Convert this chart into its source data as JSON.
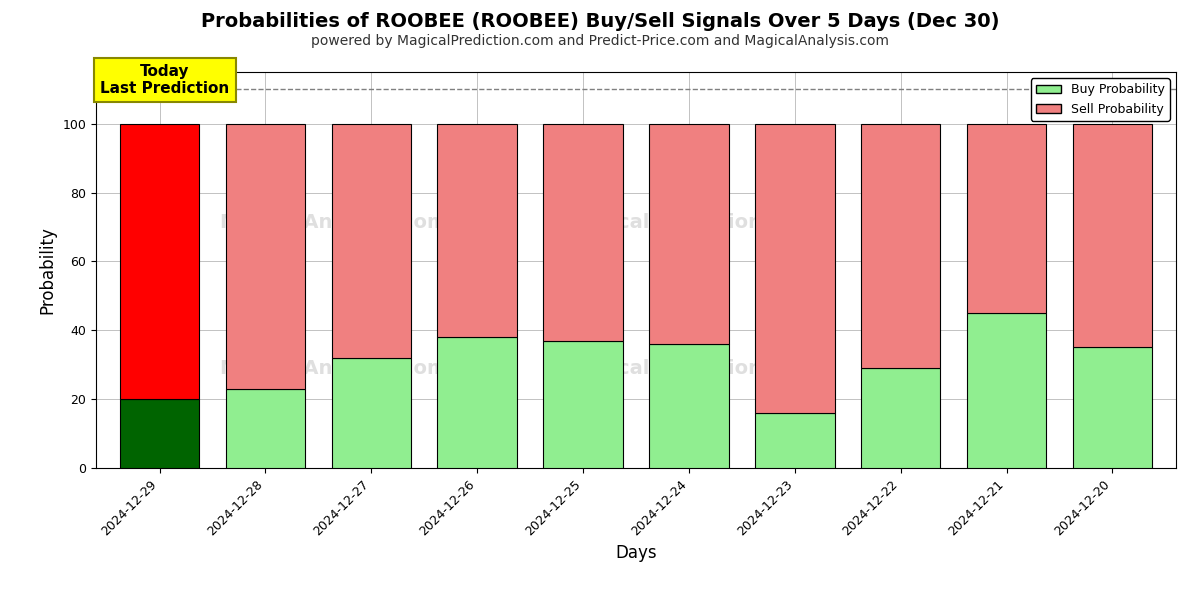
{
  "title": "Probabilities of ROOBEE (ROOBEE) Buy/Sell Signals Over 5 Days (Dec 30)",
  "subtitle": "powered by MagicalPrediction.com and Predict-Price.com and MagicalAnalysis.com",
  "xlabel": "Days",
  "ylabel": "Probability",
  "dates": [
    "2024-12-29",
    "2024-12-28",
    "2024-12-27",
    "2024-12-26",
    "2024-12-25",
    "2024-12-24",
    "2024-12-23",
    "2024-12-22",
    "2024-12-21",
    "2024-12-20"
  ],
  "buy_values": [
    20,
    23,
    32,
    38,
    37,
    36,
    16,
    29,
    45,
    35
  ],
  "sell_values": [
    80,
    77,
    68,
    62,
    63,
    64,
    84,
    71,
    55,
    65
  ],
  "buy_colors": [
    "#006400",
    "#90EE90",
    "#90EE90",
    "#90EE90",
    "#90EE90",
    "#90EE90",
    "#90EE90",
    "#90EE90",
    "#90EE90",
    "#90EE90"
  ],
  "sell_colors": [
    "#FF0000",
    "#F08080",
    "#F08080",
    "#F08080",
    "#F08080",
    "#F08080",
    "#F08080",
    "#F08080",
    "#F08080",
    "#F08080"
  ],
  "today_label": "Today\nLast Prediction",
  "today_label_bg": "#FFFF00",
  "legend_buy_color": "#90EE90",
  "legend_sell_color": "#F08080",
  "dashed_line_y": 110,
  "ylim": [
    0,
    115
  ],
  "bar_width": 0.75,
  "background_color": "#ffffff",
  "grid_color": "#aaaaaa",
  "title_fontsize": 14,
  "subtitle_fontsize": 10,
  "axis_label_fontsize": 12
}
